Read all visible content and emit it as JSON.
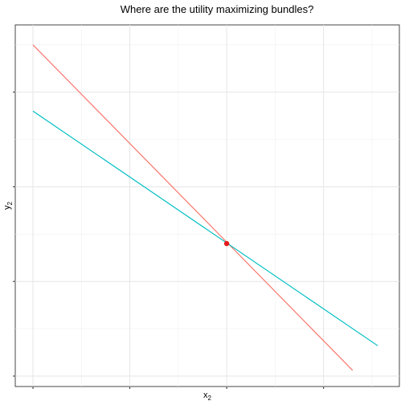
{
  "chart_data": {
    "type": "line",
    "title": "Where are the utility maximizing bundles?",
    "xlabel": "x",
    "xlabel_sub": "2",
    "ylabel": "y",
    "ylabel_sub": "2",
    "xlim": [
      0,
      1.8
    ],
    "ylim": [
      0,
      1.8
    ],
    "x_ticks": [
      0,
      0.5,
      1,
      1.5
    ],
    "y_ticks": [
      0,
      0.5,
      1,
      1.5
    ],
    "grid": true,
    "show_tick_labels": false,
    "legend": "none",
    "series": [
      {
        "color": "#F8766D",
        "x": [
          0,
          1.65
        ],
        "y": [
          1.75,
          0.03
        ]
      },
      {
        "color": "#00BFC4",
        "x": [
          0,
          1.78
        ],
        "y": [
          1.4,
          0.16
        ]
      }
    ],
    "points": [
      {
        "x": 1.0,
        "y": 0.7,
        "color": "#E41A1C"
      }
    ]
  }
}
